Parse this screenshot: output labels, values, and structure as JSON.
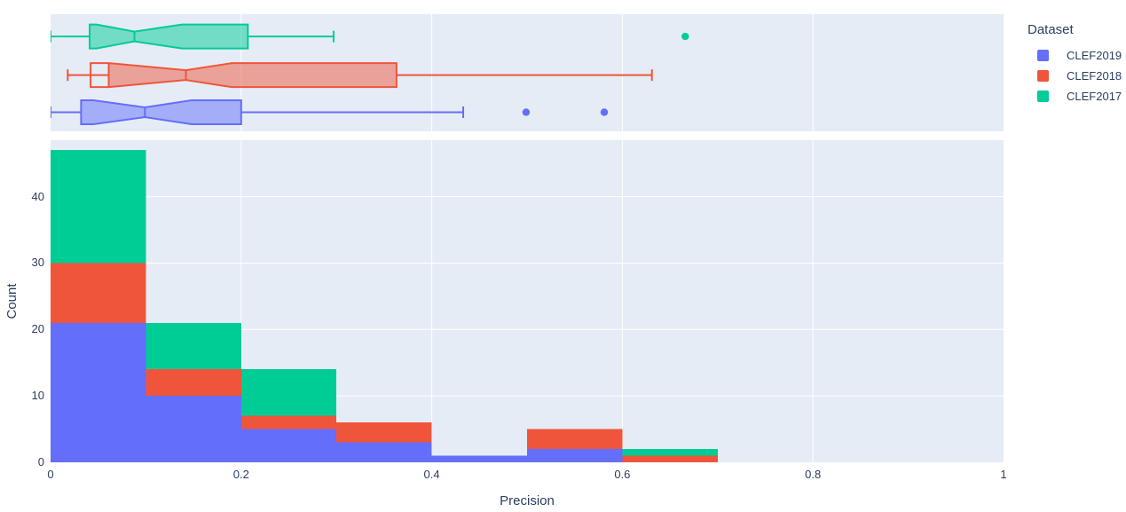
{
  "figure": {
    "background": "#ffffff",
    "plot_background": "#E5ECF6",
    "grid_color": "#ffffff",
    "text_color": "#2a3f5f"
  },
  "legend": {
    "title": "Dataset",
    "items": [
      {
        "label": "CLEF2019",
        "color": "#636EFA"
      },
      {
        "label": "CLEF2018",
        "color": "#EF553B"
      },
      {
        "label": "CLEF2017",
        "color": "#00CC96"
      }
    ]
  },
  "chart_data": [
    {
      "type": "box",
      "orientation": "horizontal",
      "xlabel": "Precision",
      "xlim": [
        0,
        1
      ],
      "grid_x": [
        0.2,
        0.4,
        0.6,
        0.8
      ],
      "notched": true,
      "series": [
        {
          "name": "CLEF2017",
          "color": "#00CC96",
          "whisker_low": 0,
          "q1": 0.041,
          "median": 0.088,
          "q3": 0.207,
          "whisker_high": 0.297,
          "notch_low": 0.048,
          "notch_high": 0.138,
          "outliers": [
            0.666
          ]
        },
        {
          "name": "CLEF2018",
          "color": "#EF553B",
          "whisker_low": 0.018,
          "q1": 0.061,
          "median": 0.142,
          "q3": 0.363,
          "whisker_high": 0.631,
          "notch_low": 0.042,
          "notch_high": 0.19,
          "outliers": []
        },
        {
          "name": "CLEF2019",
          "color": "#636EFA",
          "whisker_low": 0,
          "q1": 0.032,
          "median": 0.099,
          "q3": 0.2,
          "whisker_high": 0.433,
          "notch_low": 0.045,
          "notch_high": 0.148,
          "outliers": [
            0.499,
            0.581
          ]
        }
      ]
    },
    {
      "type": "bar",
      "subtype": "stacked-histogram",
      "xlabel": "Precision",
      "ylabel": "Count",
      "xlim": [
        0,
        1
      ],
      "ylim": [
        0,
        48.5
      ],
      "bin_edges": [
        0,
        0.1,
        0.2,
        0.3,
        0.4,
        0.5,
        0.6,
        0.7
      ],
      "series": [
        {
          "name": "CLEF2019",
          "color": "#636EFA",
          "values": [
            21,
            10,
            5,
            3,
            1,
            2,
            0
          ]
        },
        {
          "name": "CLEF2018",
          "color": "#EF553B",
          "values": [
            9,
            4,
            2,
            3,
            0,
            3,
            1
          ]
        },
        {
          "name": "CLEF2017",
          "color": "#00CC96",
          "values": [
            17,
            7,
            7,
            0,
            0,
            0,
            1
          ]
        }
      ],
      "xticks": [
        {
          "v": 0,
          "label": "0"
        },
        {
          "v": 0.2,
          "label": "0.2"
        },
        {
          "v": 0.4,
          "label": "0.4"
        },
        {
          "v": 0.6,
          "label": "0.6"
        },
        {
          "v": 0.8,
          "label": "0.8"
        },
        {
          "v": 1,
          "label": "1"
        }
      ],
      "yticks": [
        {
          "v": 0,
          "label": "0"
        },
        {
          "v": 10,
          "label": "10"
        },
        {
          "v": 20,
          "label": "20"
        },
        {
          "v": 30,
          "label": "30"
        },
        {
          "v": 40,
          "label": "40"
        }
      ],
      "grid_x": [
        0.2,
        0.4,
        0.6,
        0.8
      ],
      "grid_y": [
        10,
        20,
        30,
        40
      ],
      "legend_position": "right"
    }
  ]
}
